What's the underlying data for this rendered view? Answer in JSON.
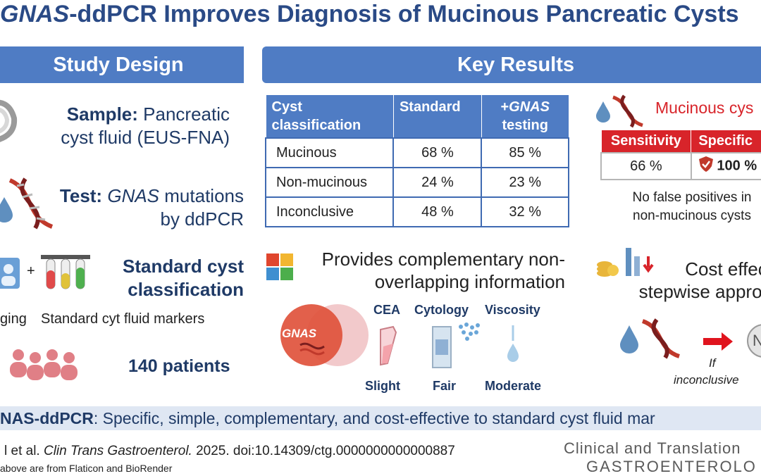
{
  "title": {
    "gene": "GNAS",
    "rest": "-ddPCR Improves Diagnosis of Mucinous Pancreatic Cysts"
  },
  "study_design": {
    "banner": "Study Design",
    "sample_label": "Sample:",
    "sample_text_1": "Pancreatic",
    "sample_text_2": "cyst fluid (EUS-FNA)",
    "test_label": "Test:",
    "test_gene": "GNAS",
    "test_text_1": "mutations",
    "test_text_2": "by ddPCR",
    "standard_1": "Standard cyst",
    "standard_2": "classification",
    "plus": "+",
    "imaging_caption": "ging",
    "markers_caption": "Standard cyt fluid markers",
    "patients": "140 patients"
  },
  "key_results": {
    "banner": "Key Results",
    "table": {
      "headers": [
        "Cyst classification",
        "Standard",
        "+GNAS testing"
      ],
      "header_col1_line1": "Cyst",
      "header_col1_line2": "classification",
      "header_col3_prefix": "+",
      "header_col3_gene": "GNAS",
      "header_col3_suffix": "testing",
      "rows": [
        {
          "label": "Mucinous",
          "standard": "68 %",
          "gnas": "85 %"
        },
        {
          "label": "Non-mucinous",
          "standard": "24 %",
          "gnas": "23 %"
        },
        {
          "label": "Inconclusive",
          "standard": "48 %",
          "gnas": "32 %"
        }
      ]
    },
    "complementary_1": "Provides complementary non-",
    "complementary_2": "overlapping information",
    "venn_label": "GNAS",
    "markers": [
      {
        "name": "CEA",
        "level": "Slight"
      },
      {
        "name": "Cytology",
        "level": "Fair"
      },
      {
        "name": "Viscosity",
        "level": "Moderate"
      }
    ],
    "mucinous_title": "Mucinous cys",
    "sens_header": "Sensitivity",
    "spec_header": "Specific",
    "sens_value": "66 %",
    "spec_value": "100 %",
    "no_fp_1": "No false positives in",
    "no_fp_2": "non-mucinous cysts",
    "cost_1": "Cost effect",
    "cost_2": "stepwise approa",
    "if_1": "If",
    "if_2": "inconclusive",
    "circle_letter": "N"
  },
  "footer": {
    "bold": "NAS-ddPCR",
    "text": ": Specific, simple, complementary, and cost-effective to standard cyst fluid mar"
  },
  "citation": {
    "authors": "l et al.",
    "journal_it": "Clin Trans Gastroenterol.",
    "rest": " 2025. doi:10.14309/ctg.0000000000000887",
    "icons_note": "above are from Flaticon and BioRender"
  },
  "journal_logo": {
    "line1": "Clinical and Translation",
    "line2": "GASTROENTEROLO"
  },
  "colors": {
    "banner": "#4f7cc4",
    "title": "#2a4a86",
    "red": "#d8242a",
    "band": "#dfe7f3"
  }
}
